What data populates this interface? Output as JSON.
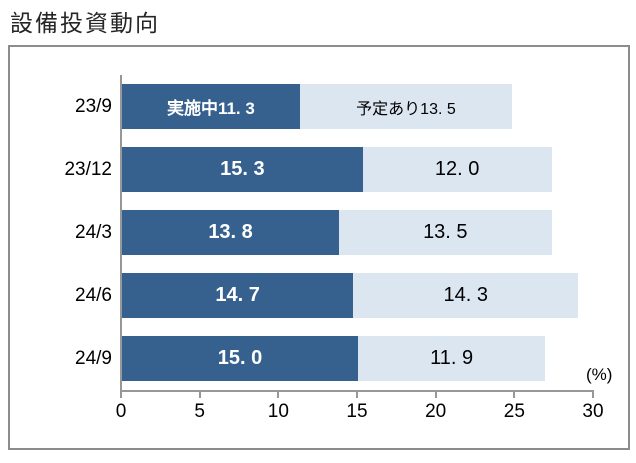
{
  "page_title": "設備投資動向",
  "colors": {
    "implementing_bar": "#36618E",
    "planned_bar": "#DCE6F1",
    "implementing_text": "#FFFFFF",
    "planned_text": "#000000",
    "axis_line": "#979797",
    "frame_border": "#8C8C8C",
    "title_text": "#262626"
  },
  "chart_data": {
    "type": "bar",
    "orientation": "horizontal",
    "stacked": true,
    "title": "設備投資動向",
    "categories": [
      "23/9",
      "23/12",
      "24/3",
      "24/6",
      "24/9"
    ],
    "series": [
      {
        "name": "実施中",
        "color": "#36618E",
        "values": [
          11.3,
          15.3,
          13.8,
          14.7,
          15.0
        ]
      },
      {
        "name": "予定あり",
        "color": "#DCE6F1",
        "values": [
          13.5,
          12.0,
          13.5,
          14.3,
          11.9
        ]
      }
    ],
    "segment_labels": [
      [
        "実施中11. 3",
        "予定あり13. 5"
      ],
      [
        "15. 3",
        "12. 0"
      ],
      [
        "13. 8",
        "13. 5"
      ],
      [
        "14. 7",
        "14. 3"
      ],
      [
        "15. 0",
        "11. 9"
      ]
    ],
    "xlabel": "(%)",
    "xlim": [
      0,
      30
    ],
    "x_ticks": [
      "0",
      "5",
      "10",
      "15",
      "20",
      "25",
      "30"
    ],
    "grid": false,
    "legend_position": "inline-first-row"
  }
}
